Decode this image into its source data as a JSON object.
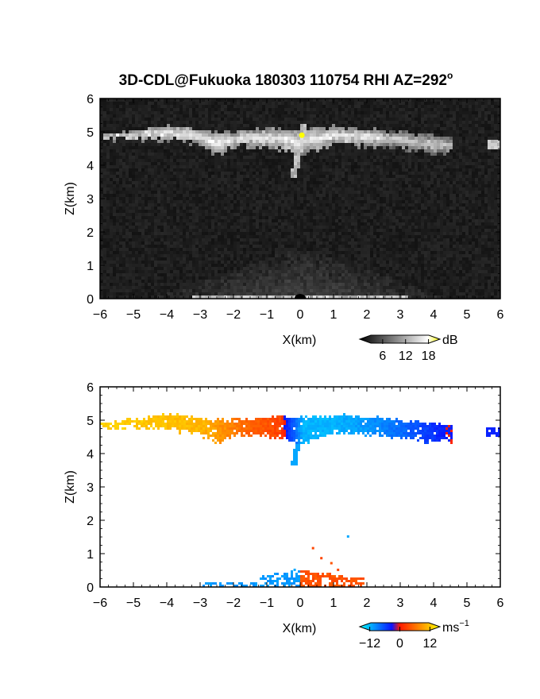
{
  "title": "3D-CDL@Fukuoka 180303 110754 RHI AZ=292",
  "title_sup": "o",
  "chart_data": [
    {
      "type": "heatmap",
      "name": "reflectivity RHI",
      "xlabel": "X(km)",
      "ylabel": "Z(km)",
      "xlim": [
        -6,
        6
      ],
      "ylim": [
        0,
        6
      ],
      "x_ticks": [
        "-6",
        "-5",
        "-4",
        "-3",
        "-2",
        "-1",
        "0",
        "1",
        "2",
        "3",
        "4",
        "5",
        "6"
      ],
      "y_ticks": [
        "0",
        "1",
        "2",
        "3",
        "4",
        "5",
        "6"
      ],
      "background": "#151515",
      "colorbar": {
        "unit": "dB",
        "ticks": [
          "6",
          "12",
          "18"
        ],
        "range": [
          0,
          21
        ],
        "colors": [
          "#000000",
          "#ffffff",
          "#ffff00"
        ]
      },
      "cloud_band_top_km": [
        [
          -6.0,
          4.9
        ],
        [
          -5.0,
          5.0
        ],
        [
          -4.0,
          5.2
        ],
        [
          -3.0,
          5.1
        ],
        [
          -2.5,
          5.0
        ],
        [
          -2.0,
          5.0
        ],
        [
          -1.0,
          5.1
        ],
        [
          0.0,
          5.1
        ],
        [
          1.0,
          5.15
        ],
        [
          2.0,
          5.1
        ],
        [
          3.0,
          5.0
        ],
        [
          4.0,
          4.9
        ],
        [
          4.5,
          4.8
        ]
      ],
      "cloud_band_base_km": [
        [
          -6.0,
          4.75
        ],
        [
          -5.0,
          4.8
        ],
        [
          -4.0,
          4.75
        ],
        [
          -3.0,
          4.6
        ],
        [
          -2.5,
          4.3
        ],
        [
          -2.0,
          4.55
        ],
        [
          -1.0,
          4.55
        ],
        [
          0.0,
          4.3
        ],
        [
          1.0,
          4.6
        ],
        [
          2.0,
          4.6
        ],
        [
          3.0,
          4.5
        ],
        [
          4.0,
          4.35
        ],
        [
          4.5,
          4.4
        ]
      ],
      "isolated_echo": {
        "x": 5.8,
        "z": 4.65
      },
      "fall_streak": [
        [
          0.1,
          5.2
        ],
        [
          -0.2,
          3.6
        ]
      ],
      "marker": {
        "x": 0.05,
        "z": 4.9,
        "color": "#ffff00"
      },
      "ground_clutter_top_km": 0.4
    },
    {
      "type": "heatmap",
      "name": "doppler velocity RHI",
      "xlabel": "X(km)",
      "ylabel": "Z(km)",
      "xlim": [
        -6,
        6
      ],
      "ylim": [
        0,
        6
      ],
      "x_ticks": [
        "-6",
        "-5",
        "-4",
        "-3",
        "-2",
        "-1",
        "0",
        "1",
        "2",
        "3",
        "4",
        "5",
        "6"
      ],
      "y_ticks": [
        "0",
        "1",
        "2",
        "3",
        "4",
        "5",
        "6"
      ],
      "colorbar": {
        "unit": "ms",
        "unit_sup": "−1",
        "ticks": [
          "−12",
          "0",
          "12"
        ],
        "range": [
          -16,
          16
        ],
        "colors": [
          "#00ffff",
          "#0a14ff",
          "#ff1a00",
          "#ffff00"
        ]
      },
      "velocity_along_cloud_ms": [
        [
          -6.0,
          13
        ],
        [
          -4.5,
          12
        ],
        [
          -3.0,
          11
        ],
        [
          -2.5,
          9
        ],
        [
          -1.5,
          5
        ],
        [
          -0.6,
          3
        ],
        [
          -0.3,
          -3
        ],
        [
          0.1,
          -11
        ],
        [
          1.0,
          -11
        ],
        [
          2.0,
          -9
        ],
        [
          3.0,
          -6
        ],
        [
          4.0,
          -2
        ],
        [
          4.6,
          0
        ]
      ],
      "low_level_echo": {
        "x_range_km": [
          -2.9,
          1.9
        ],
        "z_top_km": 0.7,
        "sign_change_x_km": 0.0
      }
    }
  ]
}
